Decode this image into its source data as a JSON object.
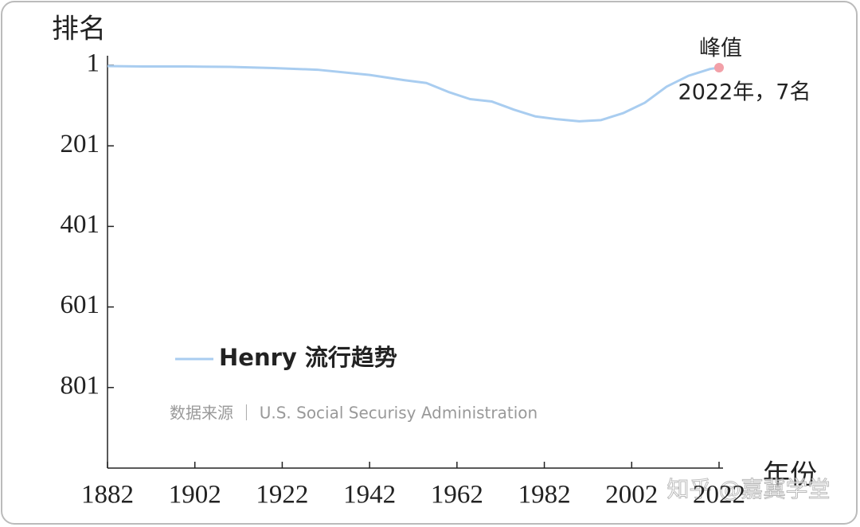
{
  "chart_data": {
    "type": "line",
    "y_label": "排名",
    "x_label": "年份",
    "x": [
      1882,
      1890,
      1900,
      1910,
      1920,
      1930,
      1942,
      1950,
      1955,
      1960,
      1965,
      1970,
      1975,
      1980,
      1985,
      1990,
      1995,
      2000,
      2005,
      2010,
      2015,
      2020,
      2022
    ],
    "series": [
      {
        "name": "Henry 流行趋势",
        "color": "#a9cdf0",
        "values": [
          3,
          4,
          4,
          5,
          8,
          12,
          25,
          38,
          45,
          67,
          85,
          91,
          111,
          128,
          135,
          140,
          137,
          120,
          94,
          54,
          27,
          10,
          7
        ]
      }
    ],
    "xlim": [
      1882,
      2022
    ],
    "ylim": [
      1001,
      1
    ],
    "xticks": [
      1882,
      1902,
      1922,
      1942,
      1962,
      1982,
      2002,
      2022
    ],
    "yticks": [
      1,
      201,
      401,
      601,
      801
    ],
    "annotations": [
      "峰值",
      "2022年，7名"
    ],
    "peak_color": "#f2a0a8",
    "source": "数据来源 ｜ U.S. Social Securisy Administration",
    "watermark": "知乎 @嘉冀学堂"
  }
}
